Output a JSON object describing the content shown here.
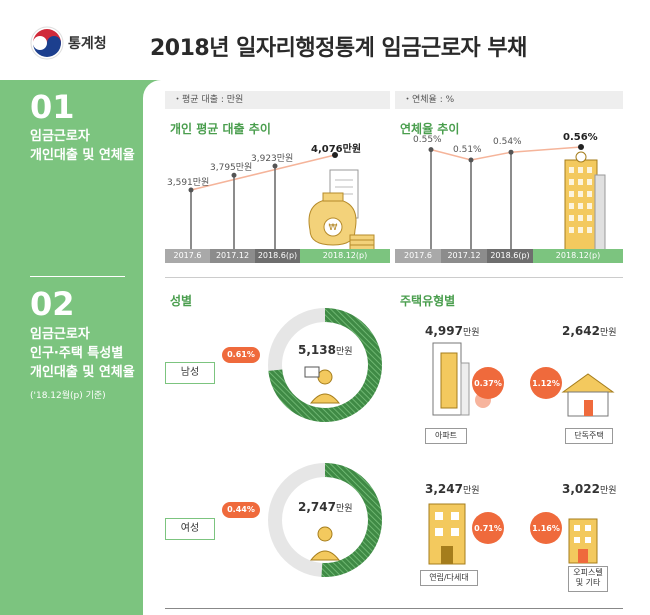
{
  "header": {
    "org": "통계청",
    "title": "2018년 일자리행정통계 임금근로자 부채"
  },
  "section1": {
    "num": "01",
    "title_line1": "임금근로자",
    "title_line2": "개인대출 및 연체율"
  },
  "section2": {
    "num": "02",
    "title_line1": "임금근로자",
    "title_line2": "인구·주택 특성별",
    "title_line3": "개인대출 및 연체율",
    "note": "('18.12월(p) 기준)"
  },
  "notes": {
    "loan_unit": "・평균 대출 : 만원",
    "rate_unit": "・연체율 : %"
  },
  "colors": {
    "green": "#7cc47f",
    "dark_green": "#3f8a45",
    "orange": "#ef6a3c"
  },
  "chart_data": [
    {
      "type": "line",
      "title": "개인 평균 대출 추이",
      "categories": [
        "2017.6",
        "2017.12",
        "2018.6(p)",
        "2018.12(p)"
      ],
      "values": [
        3591,
        3795,
        3923,
        4076
      ],
      "value_labels": [
        "3,591만원",
        "3,795만원",
        "3,923만원",
        "4,076만원"
      ]
    },
    {
      "type": "line",
      "title": "연체율 추이",
      "categories": [
        "2017.6",
        "2017.12",
        "2018.6(p)",
        "2018.12(p)"
      ],
      "values": [
        0.55,
        0.51,
        0.54,
        0.56
      ],
      "value_labels": [
        "0.55%",
        "0.51%",
        "0.54%",
        "0.56%"
      ]
    }
  ],
  "gender": {
    "title": "성별",
    "male": {
      "label": "남성",
      "amount": "5,138",
      "rate": "0.61%"
    },
    "female": {
      "label": "여성",
      "amount": "2,747",
      "rate": "0.44%"
    },
    "unit": "만원"
  },
  "housing": {
    "title": "주택유형별",
    "unit": "만원",
    "apartment": {
      "label": "아파트",
      "amount": "4,997",
      "rate": "0.37%"
    },
    "detached": {
      "label": "단독주택",
      "amount": "2,642",
      "rate": "1.12%"
    },
    "rowhouse": {
      "label": "연립/다세대",
      "amount": "3,247",
      "rate": "0.71%"
    },
    "officetel": {
      "label_line1": "오피스텔",
      "label_line2": "및 기타",
      "amount": "3,022",
      "rate": "1.16%"
    }
  }
}
